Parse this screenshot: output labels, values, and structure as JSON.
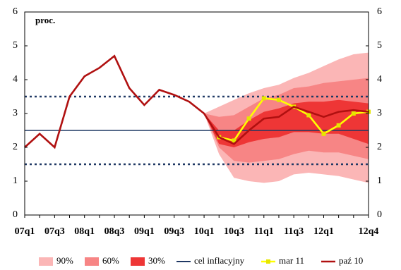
{
  "chart_data": {
    "type": "fan",
    "unit_label": "proc.",
    "categories": [
      "07q1",
      null,
      "07q3",
      null,
      "08q1",
      null,
      "08q3",
      null,
      "09q1",
      null,
      "09q3",
      null,
      "10q1",
      null,
      "10q3",
      null,
      "11q1",
      null,
      "11q3",
      null,
      "12q1",
      null,
      null,
      "12q4"
    ],
    "bands": [
      {
        "name": "90%",
        "color": "#fbb6b6",
        "upper": [
          null,
          null,
          null,
          null,
          null,
          null,
          null,
          null,
          null,
          null,
          null,
          null,
          3.0,
          3.2,
          3.4,
          3.6,
          3.75,
          3.85,
          4.05,
          4.2,
          4.4,
          4.6,
          4.75,
          4.8
        ],
        "lower": [
          null,
          null,
          null,
          null,
          null,
          null,
          null,
          null,
          null,
          null,
          null,
          null,
          3.0,
          1.8,
          1.1,
          1.0,
          0.95,
          1.0,
          1.2,
          1.25,
          1.2,
          1.15,
          1.05,
          0.95
        ]
      },
      {
        "name": "60%",
        "color": "#f78585",
        "upper": [
          null,
          null,
          null,
          null,
          null,
          null,
          null,
          null,
          null,
          null,
          null,
          null,
          3.0,
          2.9,
          2.95,
          3.2,
          3.45,
          3.55,
          3.75,
          3.8,
          3.9,
          3.95,
          4.0,
          4.05
        ],
        "lower": [
          null,
          null,
          null,
          null,
          null,
          null,
          null,
          null,
          null,
          null,
          null,
          null,
          3.0,
          2.0,
          1.6,
          1.55,
          1.6,
          1.65,
          1.8,
          1.9,
          1.85,
          1.85,
          1.75,
          1.65
        ]
      },
      {
        "name": "30%",
        "color": "#ee3636",
        "upper": [
          null,
          null,
          null,
          null,
          null,
          null,
          null,
          null,
          null,
          null,
          null,
          null,
          3.0,
          2.5,
          2.5,
          2.8,
          3.05,
          3.15,
          3.3,
          3.35,
          3.35,
          3.4,
          3.35,
          3.3
        ],
        "lower": [
          null,
          null,
          null,
          null,
          null,
          null,
          null,
          null,
          null,
          null,
          null,
          null,
          3.0,
          2.1,
          2.0,
          2.15,
          2.25,
          2.3,
          2.45,
          2.45,
          2.4,
          2.4,
          2.25,
          2.1
        ]
      }
    ],
    "reference_lines": [
      {
        "name": "cel inflacyjny",
        "value": 2.5,
        "color": "#1f3864"
      }
    ],
    "tolerance_lines": [
      1.5,
      3.5
    ],
    "tolerance_color": "#1f3864",
    "series": [
      {
        "name": "mar 11",
        "color": "#ffff00",
        "marker_color": "#e6e600",
        "values": [
          null,
          null,
          null,
          null,
          null,
          null,
          null,
          null,
          null,
          null,
          null,
          null,
          null,
          2.3,
          2.2,
          2.85,
          3.45,
          3.4,
          3.2,
          2.95,
          2.4,
          2.65,
          3.0,
          3.05
        ]
      },
      {
        "name": "paź 10",
        "color": "#b01010",
        "values": [
          2.0,
          2.4,
          2.0,
          3.5,
          4.1,
          4.35,
          4.7,
          3.75,
          3.25,
          3.7,
          3.55,
          3.35,
          3.0,
          2.3,
          2.1,
          2.5,
          2.85,
          2.9,
          3.2,
          3.05,
          2.9,
          3.05,
          3.1,
          3.05
        ]
      }
    ],
    "ylim": [
      0,
      6
    ],
    "yticks": [
      0,
      1,
      2,
      3,
      4,
      5,
      6
    ]
  }
}
